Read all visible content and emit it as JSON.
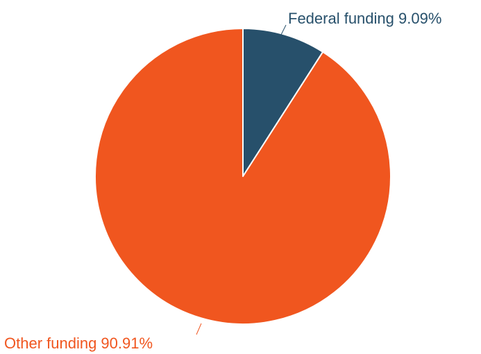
{
  "chart_data": {
    "type": "pie",
    "slices": [
      {
        "label": "Federal funding",
        "value": 9.09,
        "display": "Federal funding 9.09%",
        "color": "#27506b"
      },
      {
        "label": "Other funding",
        "value": 90.91,
        "display": "Other funding 90.91%",
        "color": "#f0561f"
      }
    ],
    "start_angle": "12 o'clock",
    "direction": "clockwise",
    "slice_border_color": "#ffffff",
    "legend": "none"
  }
}
